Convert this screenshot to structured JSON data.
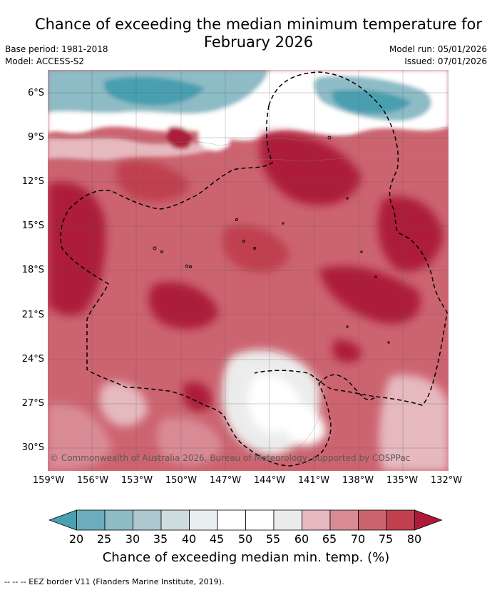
{
  "title_line1": "Chance of exceeding the median minimum temperature for",
  "title_line2": "February 2026",
  "base_period": "Base period: 1981-2018",
  "model": "Model: ACCESS-S2",
  "model_run": "Model run: 05/01/2026",
  "issued": "Issued: 07/01/2026",
  "copyright": "© Commonwealth of Australia 2026, Bureau of Meteorology, supported by COSPPac",
  "lat_ticks": [
    "6°S",
    "9°S",
    "12°S",
    "15°S",
    "18°S",
    "21°S",
    "24°S",
    "27°S",
    "30°S"
  ],
  "lon_ticks": [
    "159°W",
    "156°W",
    "153°W",
    "150°W",
    "147°W",
    "144°W",
    "141°W",
    "138°W",
    "135°W",
    "132°W"
  ],
  "colorbar": {
    "labels": [
      "20",
      "25",
      "30",
      "35",
      "40",
      "45",
      "50",
      "55",
      "60",
      "65",
      "70",
      "75",
      "80"
    ],
    "colors": [
      "#4a9fb0",
      "#6badbc",
      "#8dbbc6",
      "#adc9cf",
      "#cfdcdf",
      "#e9eff1",
      "#ffffff",
      "#ffffff",
      "#ececec",
      "#e6b9bf",
      "#d98b95",
      "#cc6470",
      "#c0404f",
      "#ad1a3a"
    ],
    "title": "Chance of exceeding median min. temp. (%)"
  },
  "footer": "--  --  -- EEZ border V11 (Flanders Marine Institute, 2019).",
  "colors": {
    "high": "#ad1a3a",
    "med_high": "#c0404f",
    "mid_high": "#cc6470",
    "low_high": "#d98b95",
    "pale": "#e6b9bf",
    "neutral": "#ececec",
    "white": "#ffffff",
    "teal": "#4a9fb0",
    "teal_light": "#8dbbc6"
  }
}
